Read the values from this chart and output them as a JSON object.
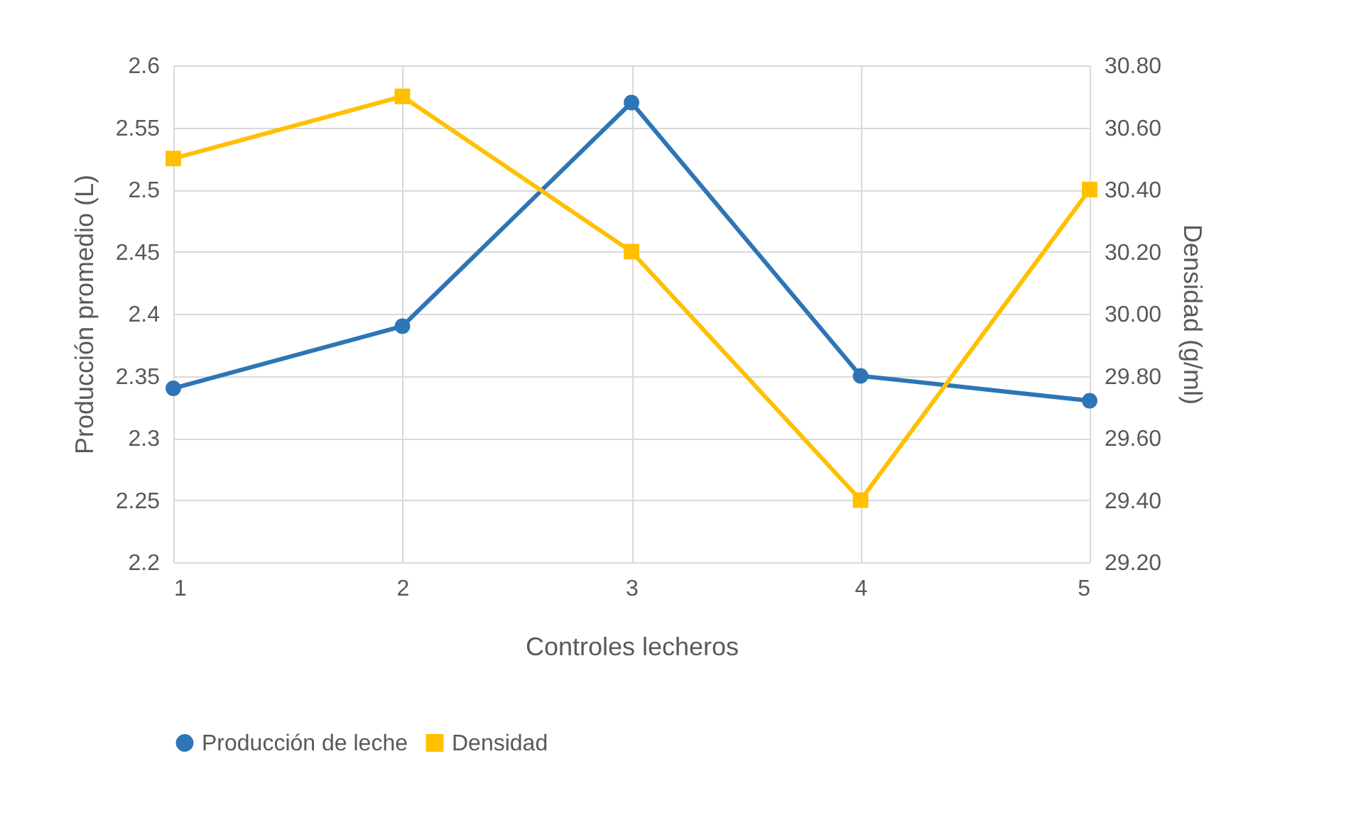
{
  "chart_data": {
    "type": "line",
    "xlabel": "Controles lecheros",
    "ylabel": "Producción promedio (L)",
    "y2label": "Densidad (g/ml)",
    "x": [
      1,
      2,
      3,
      4,
      5
    ],
    "xlim": [
      1,
      5
    ],
    "xticks": [
      1,
      2,
      3,
      4,
      5
    ],
    "ylim": [
      2.2,
      2.6
    ],
    "yticks": [
      2.2,
      2.25,
      2.3,
      2.35,
      2.4,
      2.45,
      2.5,
      2.55,
      2.6
    ],
    "y2lim": [
      29.2,
      30.8
    ],
    "y2ticks": [
      {
        "value": 29.2,
        "label": "29.20"
      },
      {
        "value": 29.4,
        "label": "29.40"
      },
      {
        "value": 29.6,
        "label": "29.60"
      },
      {
        "value": 29.8,
        "label": "29.80"
      },
      {
        "value": 30,
        "label": "30.00"
      },
      {
        "value": 30.2,
        "label": "30.20"
      },
      {
        "value": 30.4,
        "label": "30.40"
      },
      {
        "value": 30.6,
        "label": "30.60"
      },
      {
        "value": 30.8,
        "label": "30.80"
      }
    ],
    "series": [
      {
        "name": "Producción de leche",
        "color": "#2e75b6",
        "marker": "circle",
        "values": [
          2.34,
          2.39,
          2.57,
          2.35,
          2.33
        ]
      },
      {
        "name": "Densidad",
        "color": "#ffc000",
        "marker": "square",
        "axis": "y2",
        "values": [
          30.5,
          30.7,
          30.2,
          29.4,
          30.4
        ]
      }
    ],
    "grid": true,
    "legend": "bottom",
    "line_style": "solid"
  }
}
